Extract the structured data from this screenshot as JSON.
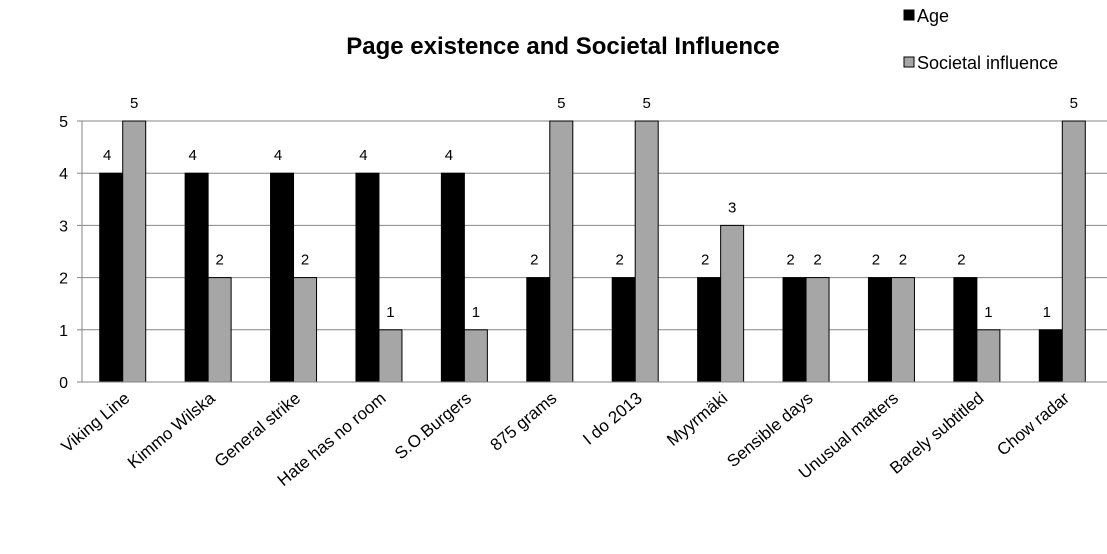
{
  "chart_data": {
    "type": "bar",
    "title": "Page existence and Societal Influence",
    "xlabel": "",
    "ylabel": "",
    "ylim": [
      0,
      5
    ],
    "yticks": [
      0,
      1,
      2,
      3,
      4,
      5
    ],
    "grid": true,
    "legend_position": "top-right",
    "categories": [
      "Viking Line",
      "Kimmo Wilska",
      "General strike",
      "Hate has no room",
      "S.O.Burgers",
      "875 grams",
      "I do 2013",
      "Myyrmäki",
      "Sensible days",
      "Unusual matters",
      "Barely subtitled",
      "Chow radar"
    ],
    "series": [
      {
        "name": "Age",
        "color": "#000000",
        "values": [
          4,
          4,
          4,
          4,
          4,
          2,
          2,
          2,
          2,
          2,
          2,
          1
        ]
      },
      {
        "name": "Societal influence",
        "color": "#a6a6a6",
        "values": [
          5,
          2,
          2,
          1,
          1,
          5,
          5,
          3,
          2,
          2,
          1,
          5
        ]
      }
    ]
  }
}
